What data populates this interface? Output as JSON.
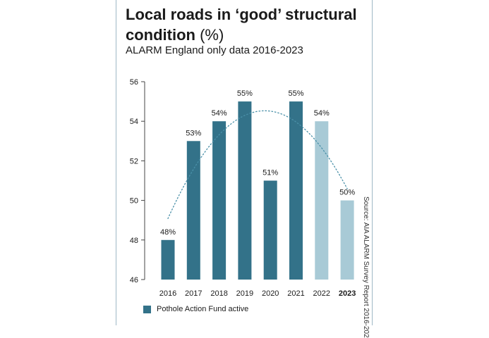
{
  "title": "Local roads in ‘good’ structural condition",
  "title_unit": "(%)",
  "subtitle": "ALARM England only data 2016-2023",
  "source": "Source: AIA ALARM Survey Report 2016-202",
  "legend": {
    "label": "Pothole Action Fund active"
  },
  "colors": {
    "active": "#337289",
    "inactive": "#a8cad6",
    "trend": "#4a90a8"
  },
  "chart_data": {
    "type": "bar",
    "categories": [
      "2016",
      "2017",
      "2018",
      "2019",
      "2020",
      "2021",
      "2022",
      "2023"
    ],
    "values": [
      48,
      53,
      54,
      55,
      51,
      55,
      54,
      50
    ],
    "data_labels": [
      "48%",
      "53%",
      "54%",
      "55%",
      "51%",
      "55%",
      "54%",
      "50%"
    ],
    "pothole_fund_active": [
      true,
      true,
      true,
      true,
      true,
      true,
      false,
      false
    ],
    "bold_categories": [
      "2023"
    ],
    "ylim": [
      46,
      56
    ],
    "yticks": [
      46,
      48,
      50,
      52,
      54,
      56
    ],
    "trendline": {
      "style": "dotted",
      "type": "polynomial"
    },
    "grid": false,
    "legend_position": "bottom-left"
  }
}
